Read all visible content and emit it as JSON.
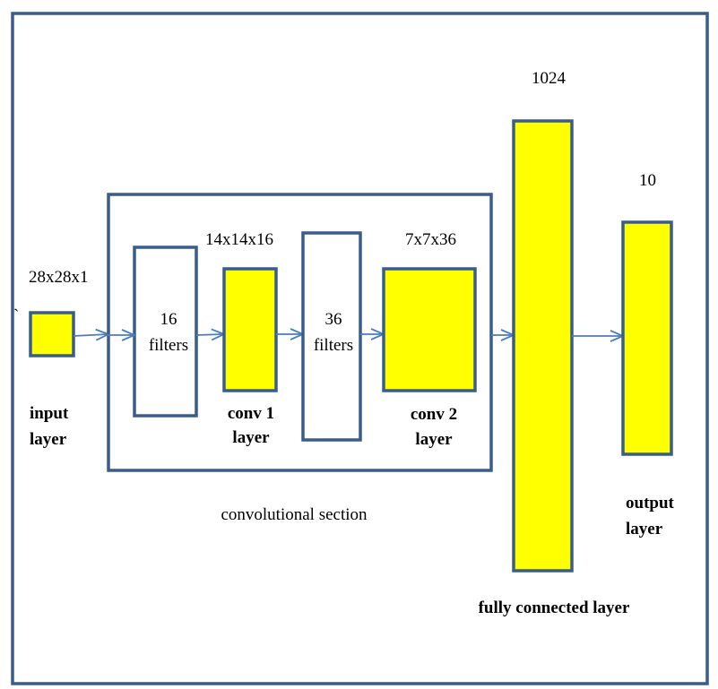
{
  "colors": {
    "frame": "#385d8a",
    "layer_fill": "#ffff00",
    "filter_fill": "#ffffff",
    "arrow": "#4a7ebb"
  },
  "stray_mark": "`",
  "input": {
    "size": "28x28x1",
    "name_line1": "input",
    "name_line2": "layer"
  },
  "filters1": {
    "count": "16",
    "word": "filters"
  },
  "conv1": {
    "size": "14x14x16",
    "name_line1": "conv 1",
    "name_line2": "layer"
  },
  "filters2": {
    "count": "36",
    "word": "filters"
  },
  "conv2": {
    "size": "7x7x36",
    "name_line1": "conv 2",
    "name_line2": "layer"
  },
  "conv_section": {
    "label": "convolutional section"
  },
  "fully_connected": {
    "size": "1024",
    "label": "fully connected layer"
  },
  "output": {
    "size": "10",
    "name_line1": "output",
    "name_line2": "layer"
  }
}
